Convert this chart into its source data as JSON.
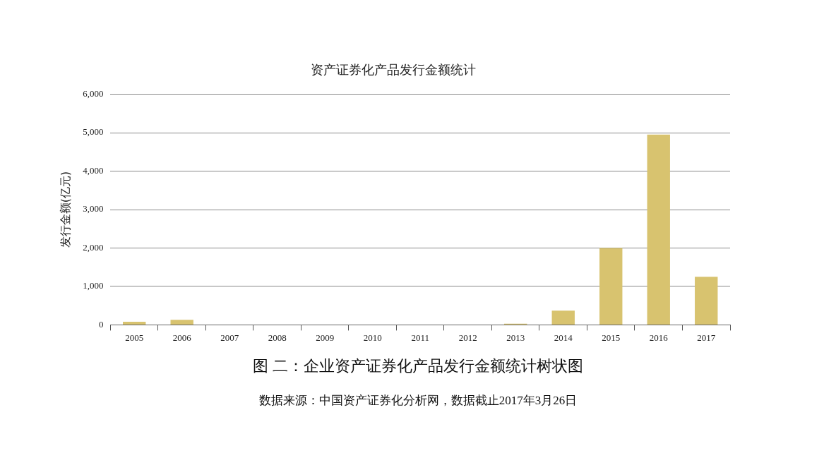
{
  "chart_data": {
    "type": "bar",
    "title": "资产证券化产品发行金额统计",
    "ylabel": "发行金额(亿元)",
    "categories": [
      "2005",
      "2006",
      "2007",
      "2008",
      "2009",
      "2010",
      "2011",
      "2012",
      "2013",
      "2014",
      "2015",
      "2016",
      "2017"
    ],
    "values": [
      80,
      130,
      0,
      0,
      0,
      0,
      0,
      0,
      30,
      370,
      2000,
      4950,
      1250
    ],
    "color": "#d8c36f",
    "ylim": [
      0,
      6000
    ],
    "yticks": [
      {
        "value": 0,
        "label": "0"
      },
      {
        "value": 1000,
        "label": "1,000"
      },
      {
        "value": 2000,
        "label": "2,000"
      },
      {
        "value": 3000,
        "label": "3,000"
      },
      {
        "value": 4000,
        "label": "4,000"
      },
      {
        "value": 5000,
        "label": "5,000"
      },
      {
        "value": 6000,
        "label": "6,000"
      }
    ],
    "grid": "y",
    "annotations": [
      "图 二：企业资产证券化产品发行金额统计树状图",
      "数据来源：中国资产证券化分析网，数据截止2017年3月26日"
    ]
  }
}
